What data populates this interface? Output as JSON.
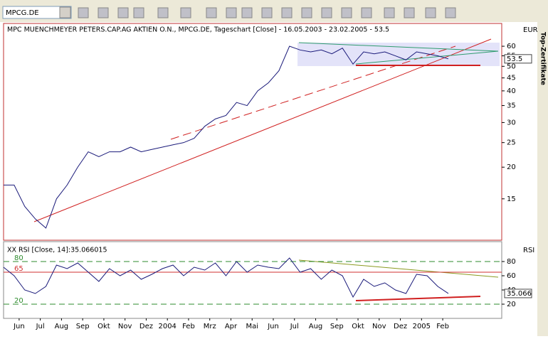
{
  "toolbar": {
    "symbol": "MPCG.DE"
  },
  "side_tab": "Top-Zertifikate",
  "chart_data": [
    {
      "type": "line",
      "title": "MPC MUENCHMEYER PETERS.CAP.AG AKTIEN O.N., MPCG.DE, Tageschart [Close] - 16.05.2003 - 23.02.2005 - 53.5",
      "y_axis_label": "EUR",
      "log_scale": true,
      "categories": [
        null,
        "Jun",
        null,
        "Jul",
        null,
        "Aug",
        null,
        "Sep",
        null,
        "Okt",
        null,
        "Nov",
        null,
        "Dez",
        null,
        "2004",
        null,
        "Feb",
        null,
        "Mrz",
        null,
        "Apr",
        null,
        "Mai",
        null,
        "Jun",
        null,
        "Jul",
        null,
        "Aug",
        null,
        "Sep",
        null,
        "Okt",
        null,
        "Nov",
        null,
        "Dez",
        null,
        "2005",
        null,
        "Feb",
        null
      ],
      "series": [
        {
          "name": "MPCG.DE",
          "color": "#1a1a7a",
          "values": [
            17,
            17,
            14,
            12.5,
            11.5,
            15,
            17,
            20,
            23,
            22,
            23,
            23,
            24,
            23,
            23.5,
            24,
            24.5,
            25,
            26,
            29,
            31,
            32,
            36,
            35,
            40,
            43,
            48,
            60,
            58,
            57,
            58,
            56,
            59,
            51,
            57,
            56,
            57,
            55,
            53,
            57,
            56,
            55,
            53.5
          ]
        }
      ],
      "ylim": [
        10.3,
        73.8
      ],
      "yticks": [
        15,
        20,
        25,
        30,
        35,
        40,
        45,
        50,
        55,
        60
      ]
    },
    {
      "type": "line",
      "title": "XX RSI [Close, 14]:35.066015",
      "y_axis_label": "RSI",
      "categories": [
        null,
        "Jun",
        null,
        "Jul",
        null,
        "Aug",
        null,
        "Sep",
        null,
        "Okt",
        null,
        "Nov",
        null,
        "Dez",
        null,
        "2004",
        null,
        "Feb",
        null,
        "Mrz",
        null,
        "Apr",
        null,
        "Mai",
        null,
        "Jun",
        null,
        "Jul",
        null,
        "Aug",
        null,
        "Sep",
        null,
        "Okt",
        null,
        "Nov",
        null,
        "Dez",
        null,
        "2005",
        null,
        "Feb",
        null
      ],
      "series": [
        {
          "name": "RSI",
          "color": "#1a1a7a",
          "values": [
            72,
            60,
            40,
            35,
            45,
            75,
            70,
            78,
            65,
            52,
            70,
            60,
            68,
            55,
            62,
            70,
            75,
            60,
            72,
            68,
            78,
            60,
            80,
            65,
            75,
            72,
            70,
            85,
            65,
            70,
            55,
            68,
            60,
            30,
            55,
            45,
            50,
            40,
            35,
            62,
            60,
            45,
            35.066015
          ],
          "value_labels": [
            null,
            null,
            null,
            null,
            null,
            null,
            null,
            null,
            null,
            null,
            null,
            null,
            null,
            null,
            null,
            null,
            null,
            null,
            null,
            null,
            null,
            null,
            null,
            null,
            null,
            null,
            null,
            null,
            null,
            null,
            null,
            null,
            null,
            null,
            null,
            null,
            null,
            null,
            null,
            null,
            null,
            null,
            "35.066"
          ]
        }
      ],
      "levels": [
        {
          "value": 80,
          "color": "#2e8b2e"
        },
        {
          "value": 65,
          "color": "#d03030"
        },
        {
          "value": 20,
          "color": "#2e8b2e"
        }
      ],
      "ylim": [
        0,
        105
      ],
      "yticks": [
        20,
        40,
        60,
        80
      ]
    }
  ]
}
